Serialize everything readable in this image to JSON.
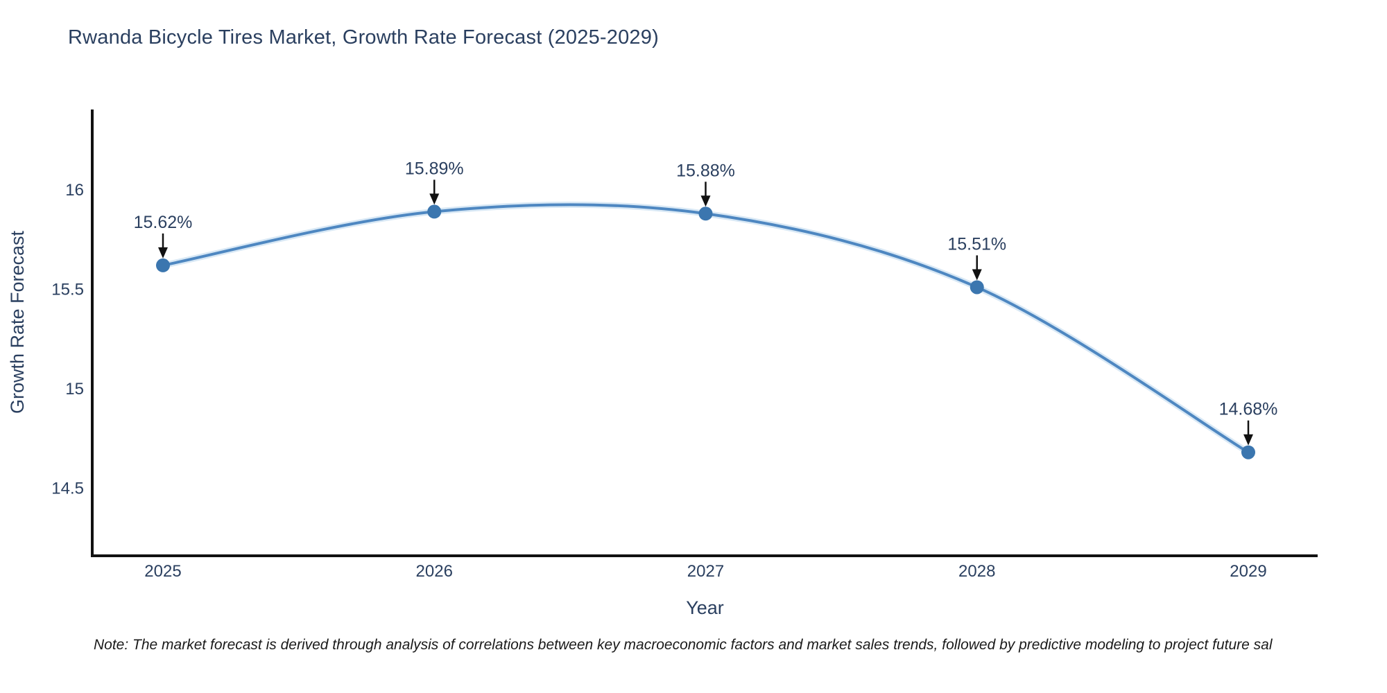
{
  "page": {
    "note": "Note: The market forecast is derived through analysis of correlations between key macroeconomic factors and market sales trends, followed by predictive modeling to project future sal"
  },
  "chart_data": {
    "type": "line",
    "title": "Rwanda Bicycle Tires Market, Growth Rate Forecast (2025-2029)",
    "categories": [
      "2025",
      "2026",
      "2027",
      "2028",
      "2029"
    ],
    "series": [
      {
        "name": "Growth Rate Forecast",
        "values": [
          15.62,
          15.89,
          15.88,
          15.51,
          14.68
        ]
      }
    ],
    "point_labels": [
      "15.62%",
      "15.89%",
      "15.88%",
      "15.51%",
      "14.68%"
    ],
    "xlabel": "Year",
    "ylabel": "Growth Rate Forecast",
    "y_ticks": [
      16,
      15.5,
      15,
      14.5
    ],
    "ylim": [
      14.16,
      16.4
    ],
    "line_shape": "spline",
    "markers": true,
    "grid": false,
    "legend_position": "none",
    "annotations_have_arrows": true,
    "colors": {
      "line": "#4e87c1",
      "line_halo": "#a8cbe8",
      "marker": "#3b76af",
      "axis": "#111111",
      "text": "#2a3f5f",
      "annotation_text": "#2a3f5f",
      "annotation_arrow": "#111111",
      "background": "#ffffff"
    }
  }
}
